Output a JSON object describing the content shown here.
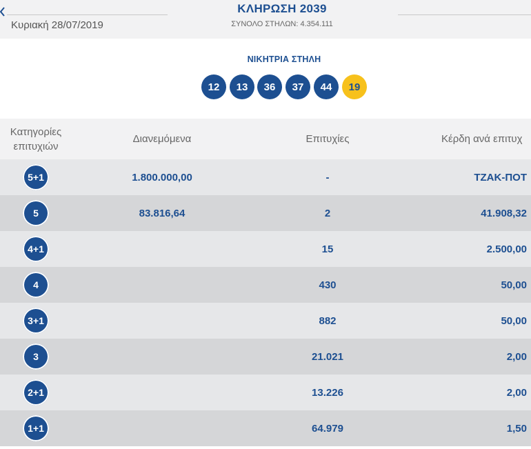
{
  "header": {
    "back_icon": "chevron-left-icon",
    "date": "Κυριακή 28/07/2019",
    "draw_title": "ΚΛΗΡΩΣΗ 2039",
    "total_columns": "ΣΥΝΟΛΟ ΣΤΗΛΩΝ: 4.354.111"
  },
  "winning": {
    "label": "ΝΙΚΗΤΡΙΑ ΣΤΗΛΗ",
    "numbers": [
      "12",
      "13",
      "36",
      "37",
      "44"
    ],
    "joker": "19"
  },
  "colors": {
    "primary": "#1d4f91",
    "joker": "#f7c11c",
    "row_light": "#e6e7e9",
    "row_dark": "#d5d6d8"
  },
  "table": {
    "headers": {
      "category": "Κατηγορίες επιτυχιών",
      "distributed": "Διανεμόμενα",
      "winners": "Επιτυχίες",
      "prize": "Κέρδη ανά επιτυχ"
    },
    "rows": [
      {
        "category": "5+1",
        "distributed": "1.800.000,00",
        "winners": "-",
        "prize": "ΤΖΑΚ-ΠΟΤ"
      },
      {
        "category": "5",
        "distributed": "83.816,64",
        "winners": "2",
        "prize": "41.908,32"
      },
      {
        "category": "4+1",
        "distributed": "",
        "winners": "15",
        "prize": "2.500,00"
      },
      {
        "category": "4",
        "distributed": "",
        "winners": "430",
        "prize": "50,00"
      },
      {
        "category": "3+1",
        "distributed": "",
        "winners": "882",
        "prize": "50,00"
      },
      {
        "category": "3",
        "distributed": "",
        "winners": "21.021",
        "prize": "2,00"
      },
      {
        "category": "2+1",
        "distributed": "",
        "winners": "13.226",
        "prize": "2,00"
      },
      {
        "category": "1+1",
        "distributed": "",
        "winners": "64.979",
        "prize": "1,50"
      }
    ]
  }
}
